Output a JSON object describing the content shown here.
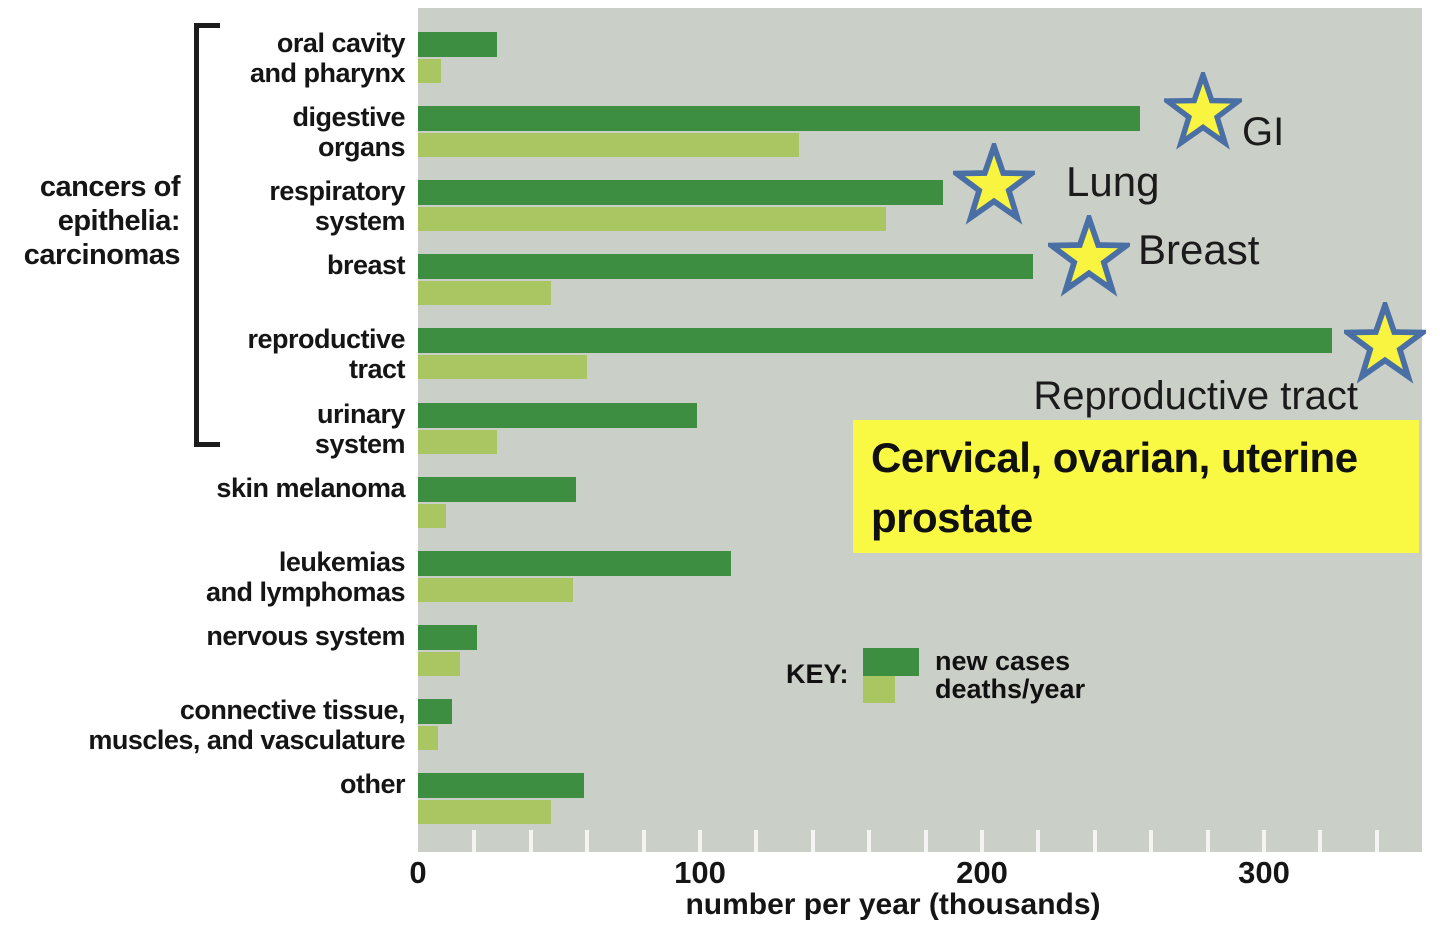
{
  "figure": {
    "group_label_lines": [
      "cancers of",
      "epithelia:",
      "carcinomas"
    ],
    "legend": {
      "key_label": "KEY:"
    }
  },
  "chart_data": {
    "type": "bar",
    "orientation": "horizontal",
    "xlabel": "number per year (thousands)",
    "xticks": [
      0,
      100,
      200,
      300
    ],
    "minor_tick_step": 20,
    "xlim": [
      0,
      356
    ],
    "background": "#cad0c8",
    "categories": [
      "oral cavity and pharynx",
      "digestive organs",
      "respiratory system",
      "breast",
      "reproductive tract",
      "urinary system",
      "skin melanoma",
      "leukemias and lymphomas",
      "nervous system",
      "connective tissue, muscles, and vasculature",
      "other"
    ],
    "category_label_lines": [
      [
        "oral cavity",
        "and pharynx"
      ],
      [
        "digestive",
        "organs"
      ],
      [
        "respiratory",
        "system"
      ],
      [
        "breast"
      ],
      [
        "reproductive",
        "tract"
      ],
      [
        "urinary",
        "system"
      ],
      [
        "skin melanoma"
      ],
      [
        "leukemias",
        "and lymphomas"
      ],
      [
        "nervous system"
      ],
      [
        "connective tissue,",
        "muscles, and vasculature"
      ],
      [
        "other"
      ]
    ],
    "series": [
      {
        "name": "new cases",
        "color": "#3e8e41",
        "values": [
          28,
          256,
          186,
          218,
          324,
          99,
          56,
          111,
          21,
          12,
          59
        ]
      },
      {
        "name": "deaths/year",
        "color": "#a9c663",
        "values": [
          8,
          135,
          166,
          47,
          60,
          28,
          10,
          55,
          15,
          7,
          47
        ]
      }
    ],
    "group_bracket": {
      "label": "cancers of epithelia: carcinomas",
      "categories_spanned": 6
    }
  },
  "annotations": {
    "stars": [
      {
        "label": "GI"
      },
      {
        "label": "Lung"
      },
      {
        "label": "Breast"
      },
      {
        "label": "Reproductive tract"
      }
    ],
    "star_style": {
      "fill": "#f8f440",
      "stroke": "#4a6fa5"
    },
    "callout": {
      "background": "#f9f943",
      "lines": [
        "Cervical, ovarian, uterine",
        "prostate"
      ]
    }
  }
}
